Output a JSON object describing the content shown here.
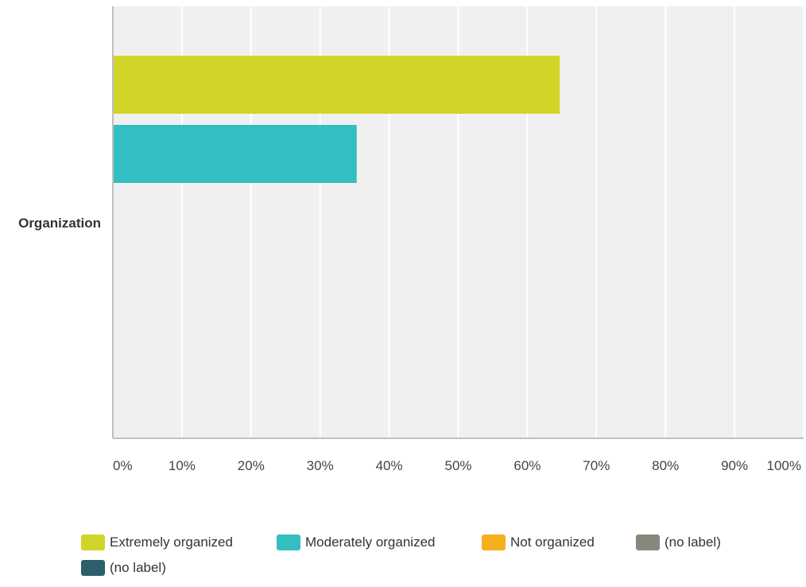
{
  "chart_data": {
    "type": "bar",
    "orientation": "horizontal",
    "categories": [
      "Organization"
    ],
    "series": [
      {
        "name": "Extremely organized",
        "values": [
          64.7
        ],
        "color": "#d1d527"
      },
      {
        "name": "Moderately organized",
        "values": [
          35.3
        ],
        "color": "#33bec1"
      },
      {
        "name": "Not organized",
        "values": [
          0
        ],
        "color": "#f6b01e"
      },
      {
        "name": "(no label)",
        "values": [
          0
        ],
        "color": "#87877b"
      },
      {
        "name": "(no label)",
        "values": [
          0
        ],
        "color": "#2d5e6c"
      }
    ],
    "x_ticks": [
      "0%",
      "10%",
      "20%",
      "30%",
      "40%",
      "50%",
      "60%",
      "70%",
      "80%",
      "90%",
      "100%"
    ],
    "xlim": [
      0,
      100
    ],
    "grid": true,
    "legend_position": "bottom",
    "title": "",
    "xlabel": "",
    "ylabel": ""
  }
}
